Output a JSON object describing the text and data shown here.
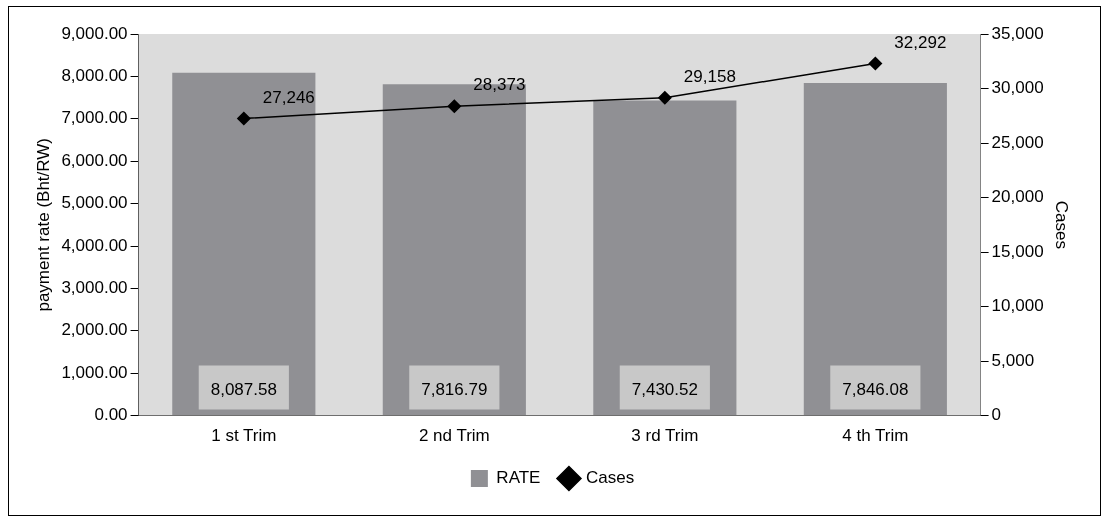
{
  "chart_data": {
    "type": "bar",
    "categories": [
      "1 st Trim",
      "2 nd Trim",
      "3 rd Trim",
      "4 th Trim"
    ],
    "series": [
      {
        "name": "RATE",
        "color": "#909094",
        "values": [
          8087.58,
          7816.79,
          7430.52,
          7846.08
        ],
        "value_labels": [
          "8,087.58",
          "7,816.79",
          "7,430.52",
          "7,846.08"
        ]
      },
      {
        "name": "Cases",
        "type": "line",
        "axis": "y2",
        "color": "#000000",
        "marker": "diamond",
        "values": [
          27246,
          28373,
          29158,
          32292
        ],
        "value_labels": [
          "27,246",
          "28,373",
          "29,158",
          "32,292"
        ]
      }
    ],
    "ylabel": "payment rate (Bht/RW)",
    "y2label": "Cases",
    "ylim": [
      0,
      9000
    ],
    "yticks": [
      {
        "value": 0,
        "label": "0.00"
      },
      {
        "value": 1000,
        "label": "1,000.00"
      },
      {
        "value": 2000,
        "label": "2,000.00"
      },
      {
        "value": 3000,
        "label": "3,000.00"
      },
      {
        "value": 4000,
        "label": "4,000.00"
      },
      {
        "value": 5000,
        "label": "5,000.00"
      },
      {
        "value": 6000,
        "label": "6,000.00"
      },
      {
        "value": 7000,
        "label": "7,000.00"
      },
      {
        "value": 8000,
        "label": "8,000.00"
      },
      {
        "value": 9000,
        "label": "9,000.00"
      }
    ],
    "y2lim": [
      0,
      35000
    ],
    "y2ticks": [
      0,
      {
        "value": 5000,
        "label": "5,000"
      },
      {
        "value": 10000,
        "label": "10,000"
      },
      {
        "value": 15000,
        "label": "15,000"
      },
      {
        "value": 20000,
        "label": "20,000"
      },
      {
        "value": 25000,
        "label": "25,000"
      },
      {
        "value": 30000,
        "label": "30,000"
      },
      {
        "value": 35000,
        "label": "35,000"
      }
    ],
    "grid": false,
    "legend": "bottom"
  }
}
